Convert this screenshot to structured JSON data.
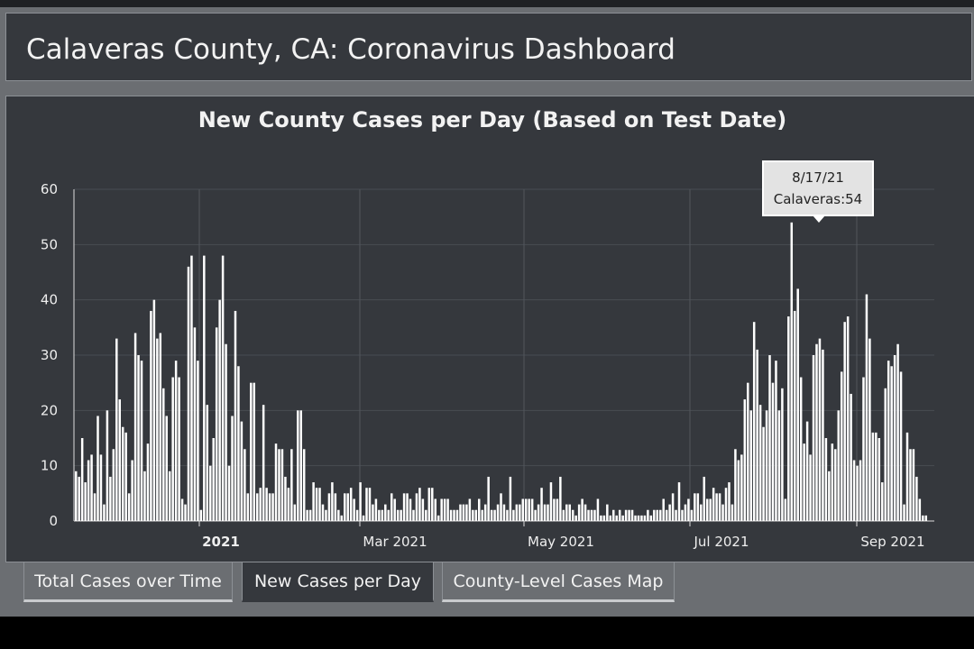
{
  "header": {
    "title": "Calaveras County, CA: Coronavirus Dashboard"
  },
  "chart_data": {
    "type": "bar",
    "title": "New County Cases per Day (Based on Test Date)",
    "xlabel": "",
    "ylabel": "",
    "ylim": [
      0,
      60
    ],
    "y_ticks": [
      "0",
      "10",
      "20",
      "30",
      "40",
      "50",
      "60"
    ],
    "x_ticks": [
      {
        "label": "2021",
        "bold": true
      },
      {
        "label": "Mar 2021",
        "bold": false
      },
      {
        "label": "May 2021",
        "bold": false
      },
      {
        "label": "Jul 2021",
        "bold": false
      },
      {
        "label": "Sep 2021",
        "bold": false
      }
    ],
    "grid": true,
    "bar_color": "#ffffff",
    "series": [
      {
        "values": [
          9,
          8,
          15,
          7,
          11,
          12,
          5,
          19,
          12,
          3,
          20,
          8,
          13,
          33,
          22,
          17,
          16,
          5,
          11,
          34,
          30,
          29,
          9,
          14,
          38,
          40,
          33,
          34,
          24,
          19,
          9,
          26,
          29,
          26,
          4,
          3,
          46,
          48,
          35,
          29,
          2,
          48,
          21,
          10,
          15,
          35,
          40,
          48,
          32,
          10,
          19,
          38,
          28,
          18,
          13,
          5,
          25,
          25,
          5,
          6,
          21,
          6,
          5,
          5,
          14,
          13,
          13,
          8,
          6,
          13,
          3,
          20,
          20,
          13,
          2,
          2,
          7,
          6,
          6,
          3,
          2,
          5,
          7,
          5,
          2,
          1,
          5,
          5,
          6,
          4,
          2,
          7,
          1,
          6,
          6,
          3,
          4,
          2,
          2,
          3,
          2,
          5,
          4,
          2,
          2,
          5,
          5,
          4,
          2,
          5,
          6,
          4,
          2,
          6,
          6,
          4,
          1,
          4,
          4,
          4,
          2,
          2,
          2,
          3,
          3,
          3,
          4,
          2,
          2,
          4,
          2,
          3,
          8,
          2,
          2,
          3,
          5,
          3,
          2,
          8,
          2,
          3,
          3,
          4,
          4,
          4,
          4,
          2,
          3,
          6,
          3,
          3,
          7,
          4,
          4,
          8,
          2,
          3,
          3,
          2,
          1,
          3,
          4,
          3,
          2,
          2,
          2,
          4,
          1,
          1,
          3,
          1,
          2,
          1,
          2,
          1,
          2,
          2,
          2,
          1,
          1,
          1,
          1,
          2,
          1,
          2,
          2,
          2,
          4,
          2,
          3,
          5,
          2,
          7,
          2,
          3,
          4,
          2,
          5,
          5,
          3,
          8,
          4,
          4,
          6,
          5,
          5,
          3,
          6,
          7,
          3,
          13,
          11,
          12,
          22,
          25,
          20,
          36,
          31,
          21,
          17,
          20,
          30,
          25,
          29,
          20,
          24,
          4,
          37,
          54,
          38,
          42,
          26,
          14,
          18,
          12,
          30,
          32,
          33,
          31,
          15,
          9,
          14,
          13,
          20,
          27,
          36,
          37,
          23,
          11,
          10,
          11,
          26,
          41,
          33,
          16,
          16,
          15,
          7,
          24,
          29,
          28,
          30,
          32,
          27,
          3,
          16,
          13,
          13,
          8,
          4,
          1,
          1
        ]
      }
    ],
    "tooltip": {
      "date": "8/17/21",
      "text": "Calaveras:54",
      "value": 54
    }
  },
  "tabs": [
    {
      "label": "Total Cases over Time",
      "active": false
    },
    {
      "label": "New Cases per Day",
      "active": true
    },
    {
      "label": "County-Level Cases Map",
      "active": false
    }
  ]
}
